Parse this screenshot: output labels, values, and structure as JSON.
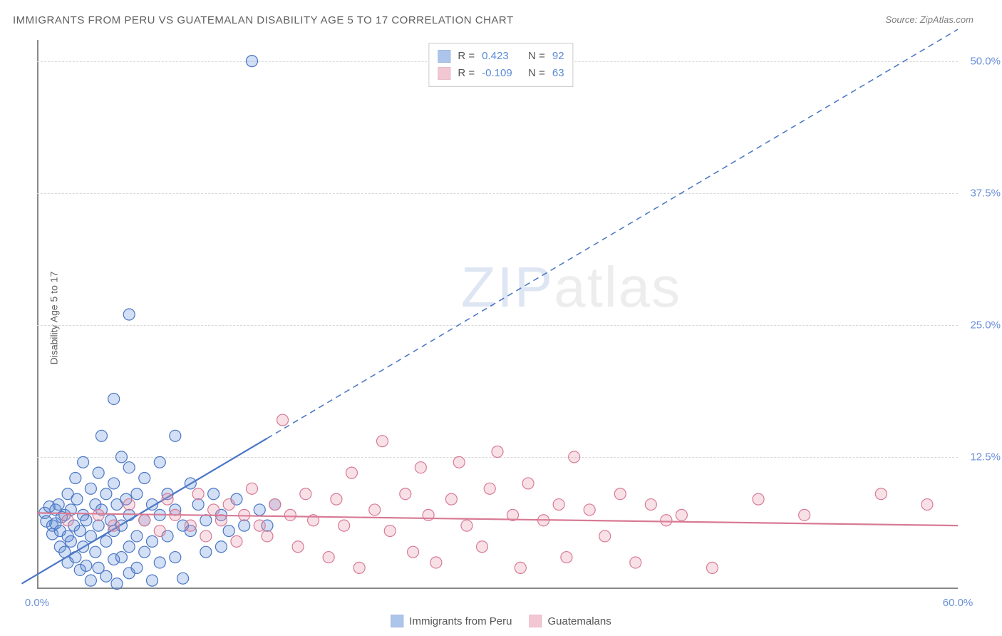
{
  "title": "IMMIGRANTS FROM PERU VS GUATEMALAN DISABILITY AGE 5 TO 17 CORRELATION CHART",
  "source_label": "Source:",
  "source_value": "ZipAtlas.com",
  "y_axis_label": "Disability Age 5 to 17",
  "watermark_zip": "ZIP",
  "watermark_atlas": "atlas",
  "chart": {
    "type": "scatter",
    "xlim": [
      0,
      60
    ],
    "ylim": [
      0,
      52
    ],
    "x_ticks": [
      0,
      60
    ],
    "x_tick_labels": [
      "0.0%",
      "60.0%"
    ],
    "y_ticks": [
      12.5,
      25.0,
      37.5,
      50.0
    ],
    "y_tick_labels": [
      "12.5%",
      "25.0%",
      "37.5%",
      "50.0%"
    ],
    "grid_color": "#d8d8d8",
    "background_color": "#ffffff",
    "axis_color": "#888888",
    "marker_radius": 8,
    "marker_stroke_width": 1.2,
    "marker_fill_opacity": 0.28,
    "series": [
      {
        "name": "Immigrants from Peru",
        "color": "#5e8bd8",
        "stroke": "#4a76c4",
        "R": "0.423",
        "N": "92",
        "trend": {
          "x1": -1,
          "y1": 0.5,
          "x2": 60,
          "y2": 53,
          "solid_until_x": 15,
          "line_width": 2.2
        },
        "points": [
          [
            0.5,
            7.2
          ],
          [
            0.6,
            6.4
          ],
          [
            0.8,
            7.8
          ],
          [
            1.0,
            6.0
          ],
          [
            1.0,
            5.2
          ],
          [
            1.2,
            7.5
          ],
          [
            1.2,
            6.2
          ],
          [
            1.4,
            8.0
          ],
          [
            1.5,
            5.5
          ],
          [
            1.5,
            4.0
          ],
          [
            1.6,
            6.8
          ],
          [
            1.8,
            7.0
          ],
          [
            1.8,
            3.5
          ],
          [
            2.0,
            9.0
          ],
          [
            2.0,
            5.0
          ],
          [
            2.0,
            2.5
          ],
          [
            2.2,
            7.5
          ],
          [
            2.2,
            4.5
          ],
          [
            2.4,
            6.0
          ],
          [
            2.5,
            10.5
          ],
          [
            2.5,
            3.0
          ],
          [
            2.6,
            8.5
          ],
          [
            2.8,
            5.5
          ],
          [
            2.8,
            1.8
          ],
          [
            3.0,
            12.0
          ],
          [
            3.0,
            7.0
          ],
          [
            3.0,
            4.0
          ],
          [
            3.2,
            6.5
          ],
          [
            3.2,
            2.2
          ],
          [
            3.5,
            9.5
          ],
          [
            3.5,
            5.0
          ],
          [
            3.5,
            0.8
          ],
          [
            3.8,
            8.0
          ],
          [
            3.8,
            3.5
          ],
          [
            4.0,
            11.0
          ],
          [
            4.0,
            6.0
          ],
          [
            4.0,
            2.0
          ],
          [
            4.2,
            14.5
          ],
          [
            4.2,
            7.5
          ],
          [
            4.5,
            9.0
          ],
          [
            4.5,
            4.5
          ],
          [
            4.5,
            1.2
          ],
          [
            4.8,
            6.5
          ],
          [
            5.0,
            18.0
          ],
          [
            5.0,
            10.0
          ],
          [
            5.0,
            5.5
          ],
          [
            5.0,
            2.8
          ],
          [
            5.2,
            8.0
          ],
          [
            5.2,
            0.5
          ],
          [
            5.5,
            12.5
          ],
          [
            5.5,
            6.0
          ],
          [
            5.5,
            3.0
          ],
          [
            5.8,
            8.5
          ],
          [
            6.0,
            26.0
          ],
          [
            6.0,
            11.5
          ],
          [
            6.0,
            7.0
          ],
          [
            6.0,
            4.0
          ],
          [
            6.0,
            1.5
          ],
          [
            6.5,
            9.0
          ],
          [
            6.5,
            5.0
          ],
          [
            6.5,
            2.0
          ],
          [
            7.0,
            10.5
          ],
          [
            7.0,
            6.5
          ],
          [
            7.0,
            3.5
          ],
          [
            7.5,
            8.0
          ],
          [
            7.5,
            4.5
          ],
          [
            7.5,
            0.8
          ],
          [
            8.0,
            12.0
          ],
          [
            8.0,
            7.0
          ],
          [
            8.0,
            2.5
          ],
          [
            8.5,
            9.0
          ],
          [
            8.5,
            5.0
          ],
          [
            9.0,
            14.5
          ],
          [
            9.0,
            7.5
          ],
          [
            9.0,
            3.0
          ],
          [
            9.5,
            6.0
          ],
          [
            9.5,
            1.0
          ],
          [
            10.0,
            10.0
          ],
          [
            10.0,
            5.5
          ],
          [
            10.5,
            8.0
          ],
          [
            11.0,
            6.5
          ],
          [
            11.0,
            3.5
          ],
          [
            11.5,
            9.0
          ],
          [
            12.0,
            7.0
          ],
          [
            12.0,
            4.0
          ],
          [
            12.5,
            5.5
          ],
          [
            13.0,
            8.5
          ],
          [
            13.5,
            6.0
          ],
          [
            14.0,
            50.0
          ],
          [
            14.5,
            7.5
          ],
          [
            15.0,
            6.0
          ],
          [
            15.5,
            8.0
          ]
        ]
      },
      {
        "name": "Guatemalans",
        "color": "#e68fa8",
        "stroke": "#d87a95",
        "R": "-0.109",
        "N": "63",
        "trend": {
          "x1": 0,
          "y1": 7.2,
          "x2": 60,
          "y2": 6.0,
          "solid_until_x": 60,
          "line_width": 2.2
        },
        "points": [
          [
            2.0,
            6.5
          ],
          [
            4.0,
            7.0
          ],
          [
            5.0,
            6.0
          ],
          [
            6.0,
            8.0
          ],
          [
            7.0,
            6.5
          ],
          [
            8.0,
            5.5
          ],
          [
            8.5,
            8.5
          ],
          [
            9.0,
            7.0
          ],
          [
            10.0,
            6.0
          ],
          [
            10.5,
            9.0
          ],
          [
            11.0,
            5.0
          ],
          [
            11.5,
            7.5
          ],
          [
            12.0,
            6.5
          ],
          [
            12.5,
            8.0
          ],
          [
            13.0,
            4.5
          ],
          [
            13.5,
            7.0
          ],
          [
            14.0,
            9.5
          ],
          [
            14.5,
            6.0
          ],
          [
            15.0,
            5.0
          ],
          [
            15.5,
            8.0
          ],
          [
            16.0,
            16.0
          ],
          [
            16.5,
            7.0
          ],
          [
            17.0,
            4.0
          ],
          [
            17.5,
            9.0
          ],
          [
            18.0,
            6.5
          ],
          [
            19.0,
            3.0
          ],
          [
            19.5,
            8.5
          ],
          [
            20.0,
            6.0
          ],
          [
            20.5,
            11.0
          ],
          [
            21.0,
            2.0
          ],
          [
            22.0,
            7.5
          ],
          [
            22.5,
            14.0
          ],
          [
            23.0,
            5.5
          ],
          [
            24.0,
            9.0
          ],
          [
            24.5,
            3.5
          ],
          [
            25.0,
            11.5
          ],
          [
            25.5,
            7.0
          ],
          [
            26.0,
            2.5
          ],
          [
            27.0,
            8.5
          ],
          [
            27.5,
            12.0
          ],
          [
            28.0,
            6.0
          ],
          [
            29.0,
            4.0
          ],
          [
            29.5,
            9.5
          ],
          [
            30.0,
            13.0
          ],
          [
            31.0,
            7.0
          ],
          [
            31.5,
            2.0
          ],
          [
            32.0,
            10.0
          ],
          [
            33.0,
            6.5
          ],
          [
            34.0,
            8.0
          ],
          [
            34.5,
            3.0
          ],
          [
            35.0,
            12.5
          ],
          [
            36.0,
            7.5
          ],
          [
            37.0,
            5.0
          ],
          [
            38.0,
            9.0
          ],
          [
            39.0,
            2.5
          ],
          [
            40.0,
            8.0
          ],
          [
            41.0,
            6.5
          ],
          [
            42.0,
            7.0
          ],
          [
            44.0,
            2.0
          ],
          [
            47.0,
            8.5
          ],
          [
            50.0,
            7.0
          ],
          [
            55.0,
            9.0
          ],
          [
            58.0,
            8.0
          ]
        ]
      }
    ]
  },
  "legend_top": {
    "r_label": "R =",
    "n_label": "N ="
  },
  "legend_bottom_labels": [
    "Immigrants from Peru",
    "Guatemalans"
  ]
}
